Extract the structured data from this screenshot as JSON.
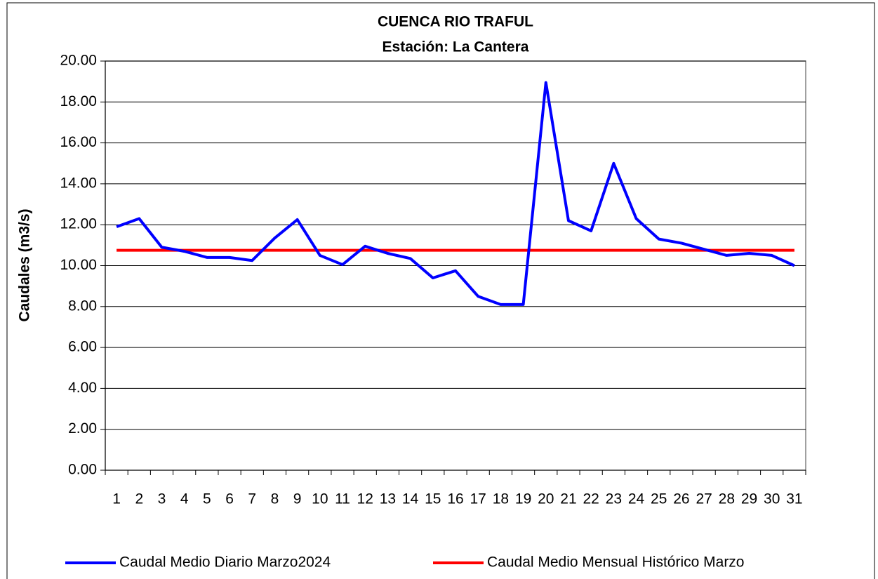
{
  "chart_data": {
    "type": "line",
    "title": "CUENCA RIO TRAFUL",
    "subtitle": "Estación: La Cantera",
    "y_label": "Caudales (m3/s)",
    "categories": [
      "1",
      "2",
      "3",
      "4",
      "5",
      "6",
      "7",
      "8",
      "9",
      "10",
      "11",
      "12",
      "13",
      "14",
      "15",
      "16",
      "17",
      "18",
      "19",
      "20",
      "21",
      "22",
      "23",
      "24",
      "25",
      "26",
      "27",
      "28",
      "29",
      "30",
      "31"
    ],
    "series": [
      {
        "name": "Caudal Medio Diario Marzo2024",
        "color": "#0000ff",
        "values": [
          11.9,
          12.3,
          10.9,
          10.7,
          10.4,
          10.4,
          10.25,
          11.35,
          12.25,
          10.5,
          10.05,
          10.95,
          10.6,
          10.35,
          9.4,
          9.75,
          8.5,
          8.1,
          8.1,
          18.95,
          12.2,
          11.7,
          15.0,
          12.3,
          11.3,
          11.1,
          10.8,
          10.5,
          10.6,
          10.5,
          10.0
        ]
      },
      {
        "name": "Caudal Medio Mensual Histórico Marzo",
        "color": "#ff0000",
        "values": [
          10.75,
          10.75,
          10.75,
          10.75,
          10.75,
          10.75,
          10.75,
          10.75,
          10.75,
          10.75,
          10.75,
          10.75,
          10.75,
          10.75,
          10.75,
          10.75,
          10.75,
          10.75,
          10.75,
          10.75,
          10.75,
          10.75,
          10.75,
          10.75,
          10.75,
          10.75,
          10.75,
          10.75,
          10.75,
          10.75,
          10.75
        ]
      }
    ],
    "ylim": [
      0,
      20
    ],
    "yticks": [
      {
        "value": 0,
        "label": "0.00"
      },
      {
        "value": 2,
        "label": "2.00"
      },
      {
        "value": 4,
        "label": "4.00"
      },
      {
        "value": 6,
        "label": "6.00"
      },
      {
        "value": 8,
        "label": "8.00"
      },
      {
        "value": 10,
        "label": "10.00"
      },
      {
        "value": 12,
        "label": "12.00"
      },
      {
        "value": 14,
        "label": "14.00"
      },
      {
        "value": 16,
        "label": "16.00"
      },
      {
        "value": 18,
        "label": "18.00"
      },
      {
        "value": 20,
        "label": "20.00"
      }
    ],
    "grid": true,
    "legend": "bottom"
  }
}
